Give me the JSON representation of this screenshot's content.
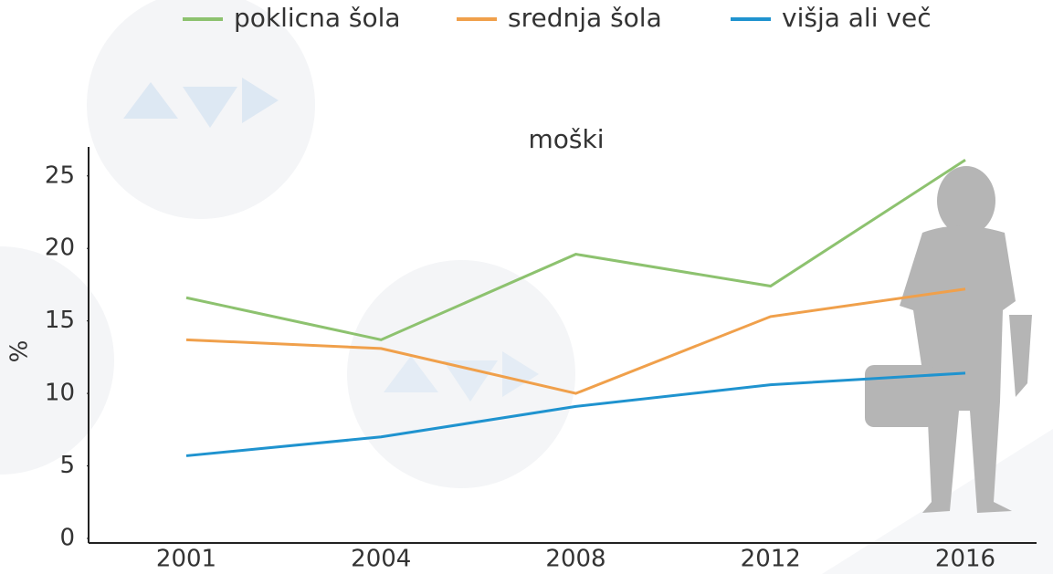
{
  "chart_data": {
    "type": "line",
    "title": "moški",
    "y_label": "%",
    "categories": [
      "2001",
      "2004",
      "2008",
      "2012",
      "2016"
    ],
    "series": [
      {
        "name": "poklicna šola",
        "color": "#8dc26f",
        "values": [
          16.6,
          13.7,
          19.6,
          17.4,
          26.1
        ]
      },
      {
        "name": "srednja šola",
        "color": "#f0a04b",
        "values": [
          13.7,
          13.1,
          10.0,
          15.3,
          17.2
        ]
      },
      {
        "name": "višja ali več",
        "color": "#1f93cf",
        "values": [
          5.7,
          7.0,
          9.1,
          10.6,
          11.4
        ]
      }
    ],
    "ylim": [
      0,
      27
    ],
    "yticks": [
      0,
      5,
      10,
      15,
      20,
      25
    ],
    "legend": "top"
  }
}
